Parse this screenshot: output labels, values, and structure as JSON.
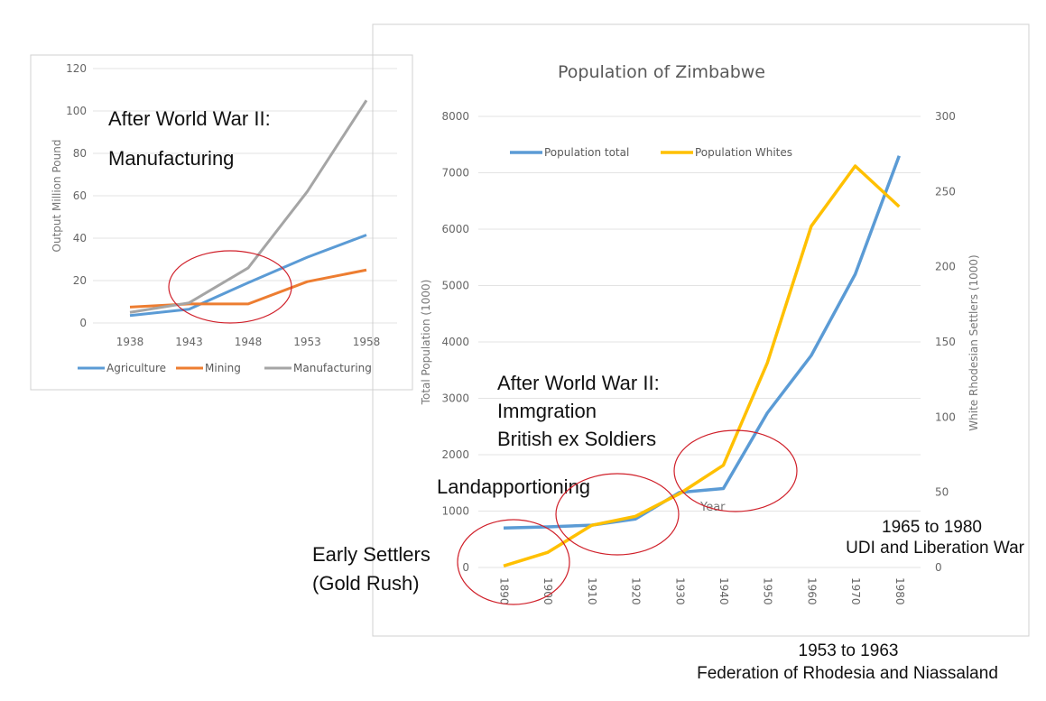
{
  "chart_data": [
    {
      "type": "line",
      "title": "",
      "xlabel": "",
      "ylabel": "Output Million Pound",
      "categories": [
        "1938",
        "1943",
        "1948",
        "1953",
        "1958"
      ],
      "ylim": [
        0,
        120
      ],
      "yticks": [
        0,
        20,
        40,
        60,
        80,
        100,
        120
      ],
      "grid": true,
      "legend": "bottom",
      "series": [
        {
          "name": "Agriculture",
          "color": "#5B9BD5",
          "values": [
            3.5,
            6.5,
            19,
            31,
            41.5
          ]
        },
        {
          "name": "Mining",
          "color": "#ED7D31",
          "values": [
            7.5,
            9,
            9,
            19.5,
            25
          ]
        },
        {
          "name": "Manufacturing",
          "color": "#A5A5A5",
          "values": [
            5,
            9.5,
            26,
            62,
            105
          ]
        }
      ],
      "annotations": [
        "After World War II:",
        "Manufacturing"
      ]
    },
    {
      "type": "line",
      "title": "Population of Zimbabwe",
      "xlabel": "Year",
      "ylabel": "Total Population (1000)",
      "ylabel_right": "White Rhodesian Settlers (1000)",
      "categories": [
        "1890",
        "1900",
        "1910",
        "1920",
        "1930",
        "1940",
        "1950",
        "1960",
        "1970",
        "1980"
      ],
      "ylim": [
        0,
        8000
      ],
      "yticks": [
        0,
        1000,
        2000,
        3000,
        4000,
        5000,
        6000,
        7000,
        8000
      ],
      "ylim_right": [
        0,
        300
      ],
      "yticks_right": [
        0,
        50,
        100,
        150,
        200,
        250,
        300
      ],
      "grid": true,
      "legend": "top",
      "series": [
        {
          "name": "Population total",
          "color": "#5B9BD5",
          "axis": "left",
          "values": [
            700,
            720,
            750,
            860,
            1330,
            1400,
            2740,
            3760,
            5200,
            7300
          ]
        },
        {
          "name": "Population Whites",
          "color": "#FFC000",
          "axis": "right",
          "values": [
            1,
            10,
            28,
            34,
            49,
            68,
            136,
            227,
            267,
            240
          ]
        }
      ],
      "annotations": {
        "ww2": [
          "After World War II:",
          "Immgration",
          "British ex Soldiers"
        ],
        "land": "Landapportioning",
        "early": [
          "Early Settlers",
          "(Gold Rush)"
        ],
        "udi": [
          "1965 to 1980",
          "UDI and Liberation  War"
        ],
        "fed": [
          "1953 to 1963",
          "Federation  of Rhodesia  and Niassaland"
        ]
      }
    }
  ],
  "highlight_color": "#D0202A"
}
